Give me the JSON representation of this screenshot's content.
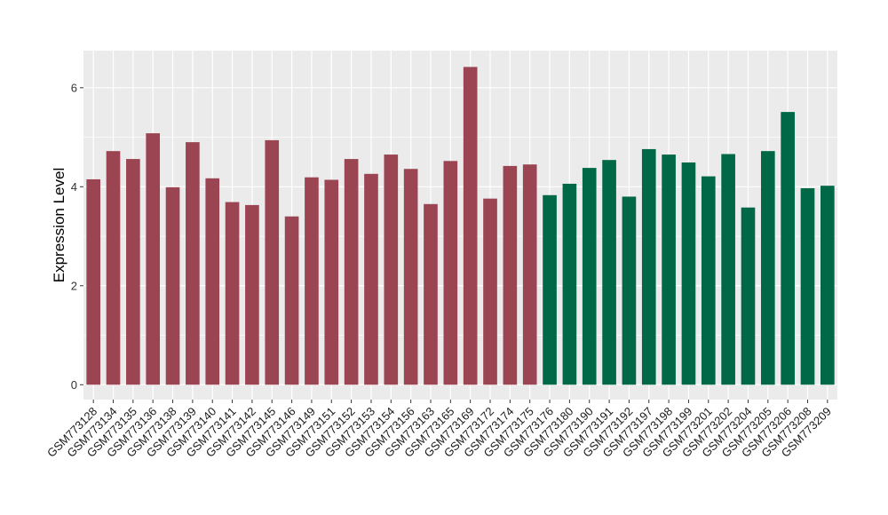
{
  "chart_data": {
    "type": "bar",
    "xlabel": "",
    "ylabel": "Expression Level",
    "ylim": [
      -0.3,
      6.75
    ],
    "yticks": [
      0,
      2,
      4,
      6
    ],
    "grid": true,
    "legend": "none",
    "colors": {
      "group1": "#9B4452",
      "group2": "#006847",
      "panel": "#EBEBEB",
      "gridline": "#FFFFFF"
    },
    "categories": [
      "GSM773128",
      "GSM773134",
      "GSM773135",
      "GSM773136",
      "GSM773138",
      "GSM773139",
      "GSM773140",
      "GSM773141",
      "GSM773142",
      "GSM773145",
      "GSM773146",
      "GSM773149",
      "GSM773151",
      "GSM773152",
      "GSM773153",
      "GSM773154",
      "GSM773156",
      "GSM773163",
      "GSM773165",
      "GSM773169",
      "GSM773172",
      "GSM773174",
      "GSM773175",
      "GSM773176",
      "GSM773180",
      "GSM773190",
      "GSM773191",
      "GSM773192",
      "GSM773197",
      "GSM773198",
      "GSM773199",
      "GSM773201",
      "GSM773202",
      "GSM773204",
      "GSM773205",
      "GSM773206",
      "GSM773208",
      "GSM773209"
    ],
    "values": [
      4.15,
      4.72,
      4.56,
      5.08,
      3.99,
      4.9,
      4.17,
      3.69,
      3.63,
      4.94,
      3.4,
      4.19,
      4.14,
      4.56,
      4.26,
      4.65,
      4.36,
      3.65,
      4.52,
      6.42,
      3.76,
      4.42,
      4.45,
      3.83,
      4.06,
      4.38,
      4.54,
      3.8,
      4.76,
      4.65,
      4.49,
      4.21,
      4.66,
      3.58,
      4.72,
      5.51,
      3.97,
      4.02
    ],
    "group": [
      1,
      1,
      1,
      1,
      1,
      1,
      1,
      1,
      1,
      1,
      1,
      1,
      1,
      1,
      1,
      1,
      1,
      1,
      1,
      1,
      1,
      1,
      1,
      2,
      2,
      2,
      2,
      2,
      2,
      2,
      2,
      2,
      2,
      2,
      2,
      2,
      2,
      2
    ]
  }
}
